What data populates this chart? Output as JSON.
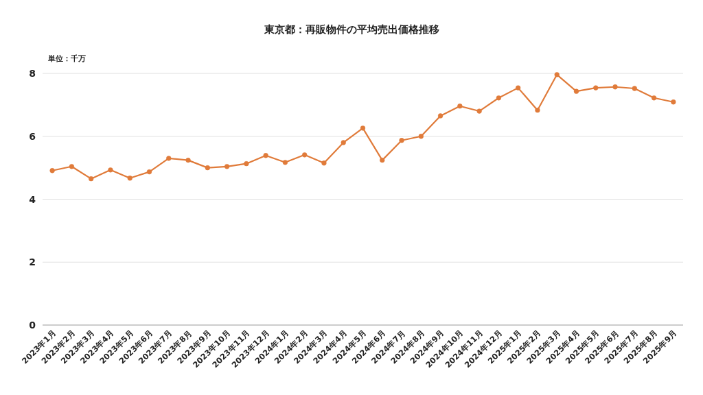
{
  "chart_data": {
    "type": "line",
    "title": "東京都：再販物件の平均売出価格推移",
    "ylabel": "単位：千万",
    "categories": [
      "2023年1月",
      "2023年2月",
      "2023年3月",
      "2023年4月",
      "2023年5月",
      "2023年6月",
      "2023年7月",
      "2023年8月",
      "2023年9月",
      "2023年10月",
      "2023年11月",
      "2023年12月",
      "2024年1月",
      "2024年2月",
      "2024年3月",
      "2024年4月",
      "2024年5月",
      "2024年6月",
      "2024年7月",
      "2024年8月",
      "2024年9月",
      "2024年10月",
      "2024年11月",
      "2024年12月",
      "2025年1月",
      "2025年2月",
      "2025年3月",
      "2025年4月",
      "2025年5月",
      "2025年6月",
      "2025年7月",
      "2025年8月",
      "2025年9月"
    ],
    "series": [
      {
        "color": "#e07b3a",
        "values": [
          4.91,
          5.04,
          4.65,
          4.93,
          4.67,
          4.87,
          5.3,
          5.24,
          5.0,
          5.04,
          5.13,
          5.39,
          5.17,
          5.41,
          5.15,
          5.8,
          6.26,
          5.24,
          5.87,
          6.0,
          6.65,
          6.96,
          6.8,
          7.22,
          7.54,
          6.83,
          7.96,
          7.43,
          7.54,
          7.57,
          7.52,
          7.22,
          7.09
        ]
      }
    ],
    "ylim": [
      0,
      8
    ],
    "yticks": [
      0,
      2,
      4,
      6,
      8
    ],
    "grid": "y",
    "marker": "circle"
  }
}
